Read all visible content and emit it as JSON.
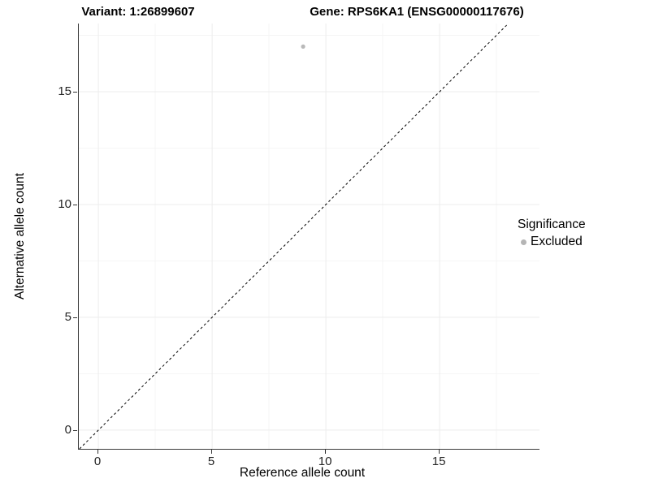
{
  "header": {
    "variant_title": "Variant: 1:26899607",
    "gene_title": "Gene: RPS6KA1 (ENSG00000117676)"
  },
  "legend": {
    "title": "Significance",
    "items": [
      {
        "label": "Excluded",
        "color": "#b5b5b5"
      }
    ]
  },
  "chart_data": {
    "type": "scatter",
    "title": "Variant: 1:26899607   Gene: RPS6KA1 (ENSG00000117676)",
    "xlabel": "Reference allele count",
    "ylabel": "Alternative allele count",
    "xlim": [
      -0.86,
      19.39
    ],
    "ylim": [
      -0.83,
      18.02
    ],
    "x_ticks": [
      0,
      5,
      10,
      15
    ],
    "y_ticks": [
      0,
      5,
      10,
      15
    ],
    "x_minor": [
      2.5,
      7.5,
      12.5,
      17.5
    ],
    "y_minor": [
      2.5,
      7.5,
      12.5,
      17.5
    ],
    "grid": true,
    "legend_position": "right",
    "series": [
      {
        "name": "Excluded",
        "color": "#b9b9b9",
        "points": [
          {
            "x": 9,
            "y": 17
          }
        ]
      }
    ],
    "reference_line": {
      "type": "identity",
      "slope": 1,
      "intercept": 0,
      "style": "dashed",
      "color": "#000000"
    },
    "style": {
      "grid_major_color": "#ececec",
      "grid_minor_color": "#f5f5f5",
      "axis_line_color": "#3c3c3c",
      "tick_color": "#333333",
      "point_radius": 2.6
    }
  }
}
